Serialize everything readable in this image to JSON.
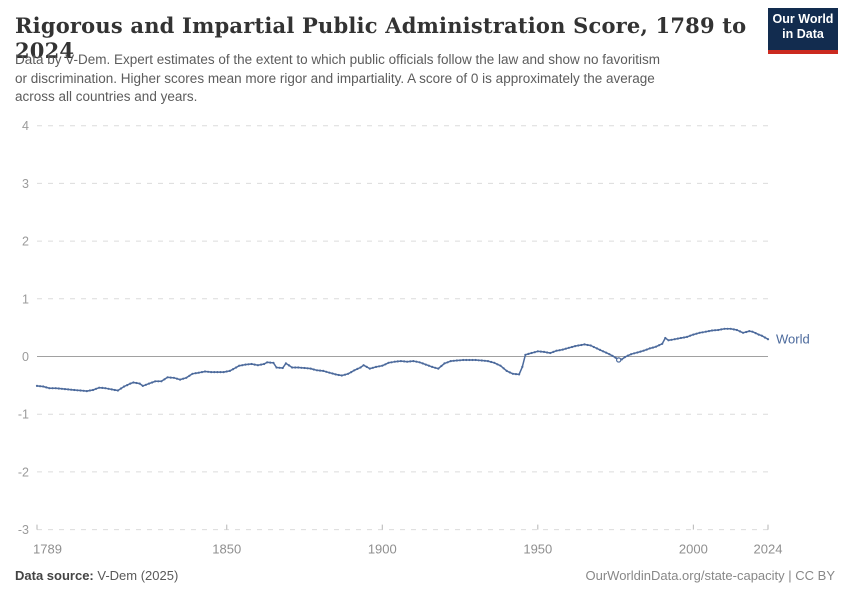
{
  "header": {
    "title": "Rigorous and Impartial Public Administration Score, 1789 to 2024",
    "subtitle_lines": [
      "Data by V-Dem. Expert estimates of the extent to which public officials follow the law and show no favoritism",
      "or discrimination. Higher scores mean more rigor and impartiality. A score of 0 is approximately the average",
      "across all countries and years."
    ]
  },
  "logo": {
    "line1": "Our World",
    "line2": "in Data",
    "bg_color": "#122c4f",
    "stripe_color": "#cb2a20"
  },
  "chart_data": {
    "type": "line",
    "title": "Rigorous and Impartial Public Administration Score, 1789 to 2024",
    "xlabel": "",
    "ylabel": "",
    "xlim": [
      1789,
      2024
    ],
    "ylim": [
      -3,
      4
    ],
    "grid": "dashed horizontal, solid zero line",
    "legend_position": "end-of-line label",
    "xticks": [
      1789,
      1850,
      1900,
      1950,
      2000,
      2024
    ],
    "yticks": [
      -3,
      -2,
      -1,
      0,
      1,
      2,
      3,
      4
    ],
    "colors": {
      "line": "#4c6a9c",
      "grid": "#dcdcdc",
      "zero_line": "#a1a1a1",
      "tick_label": "#8f8f8f"
    },
    "entity_label": "World",
    "open_marker_year": 1976,
    "series": [
      {
        "name": "World",
        "points": [
          [
            1789,
            -0.51
          ],
          [
            1791,
            -0.52
          ],
          [
            1793,
            -0.55
          ],
          [
            1795,
            -0.55
          ],
          [
            1797,
            -0.56
          ],
          [
            1799,
            -0.57
          ],
          [
            1801,
            -0.58
          ],
          [
            1803,
            -0.59
          ],
          [
            1805,
            -0.6
          ],
          [
            1807,
            -0.58
          ],
          [
            1809,
            -0.54
          ],
          [
            1811,
            -0.55
          ],
          [
            1813,
            -0.57
          ],
          [
            1815,
            -0.59
          ],
          [
            1817,
            -0.52
          ],
          [
            1819,
            -0.47
          ],
          [
            1820,
            -0.45
          ],
          [
            1822,
            -0.47
          ],
          [
            1823,
            -0.51
          ],
          [
            1825,
            -0.47
          ],
          [
            1827,
            -0.43
          ],
          [
            1829,
            -0.43
          ],
          [
            1831,
            -0.36
          ],
          [
            1833,
            -0.37
          ],
          [
            1835,
            -0.4
          ],
          [
            1837,
            -0.37
          ],
          [
            1839,
            -0.3
          ],
          [
            1841,
            -0.28
          ],
          [
            1843,
            -0.26
          ],
          [
            1845,
            -0.27
          ],
          [
            1847,
            -0.27
          ],
          [
            1849,
            -0.27
          ],
          [
            1851,
            -0.25
          ],
          [
            1852,
            -0.22
          ],
          [
            1854,
            -0.16
          ],
          [
            1856,
            -0.14
          ],
          [
            1858,
            -0.13
          ],
          [
            1860,
            -0.15
          ],
          [
            1862,
            -0.13
          ],
          [
            1863,
            -0.1
          ],
          [
            1865,
            -0.11
          ],
          [
            1866,
            -0.19
          ],
          [
            1868,
            -0.2
          ],
          [
            1869,
            -0.12
          ],
          [
            1871,
            -0.19
          ],
          [
            1873,
            -0.19
          ],
          [
            1875,
            -0.2
          ],
          [
            1877,
            -0.21
          ],
          [
            1879,
            -0.24
          ],
          [
            1881,
            -0.25
          ],
          [
            1883,
            -0.28
          ],
          [
            1885,
            -0.31
          ],
          [
            1887,
            -0.33
          ],
          [
            1889,
            -0.3
          ],
          [
            1891,
            -0.24
          ],
          [
            1893,
            -0.19
          ],
          [
            1894,
            -0.15
          ],
          [
            1896,
            -0.21
          ],
          [
            1898,
            -0.18
          ],
          [
            1900,
            -0.16
          ],
          [
            1902,
            -0.11
          ],
          [
            1904,
            -0.09
          ],
          [
            1906,
            -0.08
          ],
          [
            1908,
            -0.09
          ],
          [
            1910,
            -0.08
          ],
          [
            1912,
            -0.1
          ],
          [
            1914,
            -0.14
          ],
          [
            1916,
            -0.18
          ],
          [
            1918,
            -0.21
          ],
          [
            1920,
            -0.12
          ],
          [
            1922,
            -0.08
          ],
          [
            1924,
            -0.07
          ],
          [
            1926,
            -0.06
          ],
          [
            1928,
            -0.06
          ],
          [
            1930,
            -0.06
          ],
          [
            1932,
            -0.07
          ],
          [
            1934,
            -0.08
          ],
          [
            1936,
            -0.11
          ],
          [
            1938,
            -0.16
          ],
          [
            1940,
            -0.25
          ],
          [
            1942,
            -0.3
          ],
          [
            1944,
            -0.31
          ],
          [
            1945,
            -0.18
          ],
          [
            1946,
            0.03
          ],
          [
            1948,
            0.06
          ],
          [
            1950,
            0.09
          ],
          [
            1952,
            0.08
          ],
          [
            1954,
            0.06
          ],
          [
            1956,
            0.1
          ],
          [
            1958,
            0.12
          ],
          [
            1960,
            0.15
          ],
          [
            1962,
            0.18
          ],
          [
            1964,
            0.2
          ],
          [
            1965,
            0.21
          ],
          [
            1967,
            0.19
          ],
          [
            1969,
            0.14
          ],
          [
            1971,
            0.09
          ],
          [
            1973,
            0.04
          ],
          [
            1975,
            -0.02
          ],
          [
            1976,
            -0.06
          ],
          [
            1977,
            -0.05
          ],
          [
            1978,
            -0.01
          ],
          [
            1980,
            0.04
          ],
          [
            1982,
            0.07
          ],
          [
            1984,
            0.1
          ],
          [
            1986,
            0.14
          ],
          [
            1988,
            0.17
          ],
          [
            1990,
            0.22
          ],
          [
            1991,
            0.32
          ],
          [
            1992,
            0.28
          ],
          [
            1994,
            0.3
          ],
          [
            1996,
            0.32
          ],
          [
            1998,
            0.34
          ],
          [
            2000,
            0.38
          ],
          [
            2002,
            0.41
          ],
          [
            2004,
            0.43
          ],
          [
            2006,
            0.45
          ],
          [
            2008,
            0.46
          ],
          [
            2010,
            0.48
          ],
          [
            2012,
            0.48
          ],
          [
            2014,
            0.46
          ],
          [
            2016,
            0.41
          ],
          [
            2018,
            0.44
          ],
          [
            2019,
            0.43
          ],
          [
            2021,
            0.38
          ],
          [
            2022,
            0.36
          ],
          [
            2023,
            0.33
          ],
          [
            2024,
            0.3
          ]
        ]
      }
    ]
  },
  "footer": {
    "source_label": "Data source:",
    "source_value": " V-Dem (2025)",
    "license_text": "OurWorldinData.org/state-capacity | CC BY"
  }
}
